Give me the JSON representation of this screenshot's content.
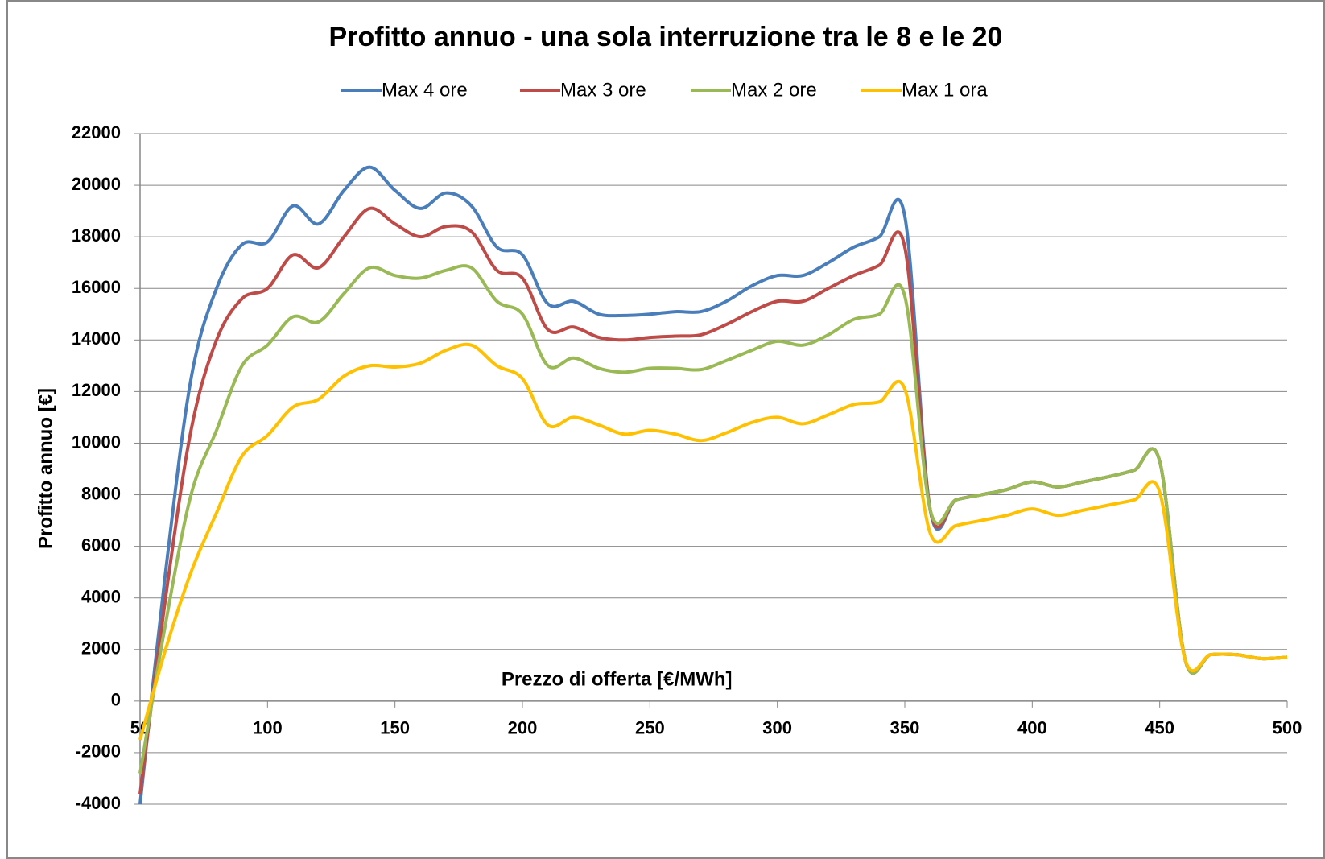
{
  "chart_data": {
    "type": "line",
    "title": "Profitto annuo - una sola interruzione tra le 8 e le 20",
    "x_label": "Prezzo di offerta [€/MWh]",
    "y_label": "Profitto annuo [€]",
    "x": [
      50,
      60,
      70,
      80,
      90,
      100,
      110,
      120,
      130,
      140,
      150,
      160,
      170,
      180,
      190,
      200,
      210,
      220,
      230,
      240,
      250,
      260,
      270,
      280,
      290,
      300,
      310,
      320,
      330,
      340,
      350,
      360,
      370,
      380,
      390,
      400,
      410,
      420,
      430,
      440,
      450,
      460,
      470,
      480,
      490,
      500
    ],
    "series": [
      {
        "name": "Max 4 ore",
        "color": "#4a7ebb",
        "values": [
          -4000,
          5000,
          12500,
          16000,
          17700,
          17800,
          19200,
          18500,
          19800,
          20700,
          19800,
          19100,
          19700,
          19200,
          17600,
          17300,
          15400,
          15500,
          15000,
          14950,
          15000,
          15100,
          15100,
          15500,
          16100,
          16500,
          16500,
          17000,
          17600,
          18000,
          18800,
          7400,
          7800,
          8000,
          8200,
          8500,
          8300,
          8500,
          8700,
          8950,
          9300,
          1600,
          1800,
          1800,
          1650,
          1700
        ]
      },
      {
        "name": "Max 3 ore",
        "color": "#be4b48",
        "values": [
          -3600,
          4000,
          10500,
          14000,
          15600,
          16000,
          17300,
          16800,
          18000,
          19100,
          18500,
          18000,
          18400,
          18200,
          16700,
          16400,
          14400,
          14500,
          14100,
          14000,
          14100,
          14150,
          14200,
          14600,
          15100,
          15500,
          15500,
          16000,
          16500,
          16900,
          17600,
          7400,
          7800,
          8000,
          8200,
          8500,
          8300,
          8500,
          8700,
          8950,
          9300,
          1600,
          1800,
          1800,
          1650,
          1700
        ]
      },
      {
        "name": "Max 2 ore",
        "color": "#98b954",
        "values": [
          -2800,
          3000,
          8000,
          10500,
          13000,
          13800,
          14900,
          14700,
          15800,
          16800,
          16500,
          16400,
          16700,
          16800,
          15500,
          15000,
          13000,
          13300,
          12900,
          12750,
          12900,
          12900,
          12850,
          13200,
          13600,
          13950,
          13800,
          14200,
          14800,
          15000,
          15700,
          7400,
          7800,
          8000,
          8200,
          8500,
          8300,
          8500,
          8700,
          8950,
          9300,
          1600,
          1800,
          1800,
          1650,
          1700
        ]
      },
      {
        "name": "Max 1 ora",
        "color": "#ffc000",
        "values": [
          -1500,
          2000,
          5000,
          7300,
          9500,
          10300,
          11400,
          11700,
          12600,
          13000,
          12950,
          13100,
          13600,
          13800,
          13000,
          12500,
          10700,
          11000,
          10700,
          10350,
          10500,
          10350,
          10100,
          10400,
          10800,
          11000,
          10750,
          11100,
          11500,
          11600,
          12100,
          6500,
          6800,
          7000,
          7200,
          7450,
          7200,
          7400,
          7600,
          7800,
          8100,
          1600,
          1800,
          1800,
          1650,
          1700
        ]
      }
    ],
    "xlim": [
      50,
      500
    ],
    "xticks": [
      50,
      100,
      150,
      200,
      250,
      300,
      350,
      400,
      450,
      500
    ],
    "ylim": [
      -4000,
      22000
    ],
    "yticks": [
      -4000,
      -2000,
      0,
      2000,
      4000,
      6000,
      8000,
      10000,
      12000,
      14000,
      16000,
      18000,
      20000,
      22000
    ],
    "grid": true,
    "legend": "top"
  }
}
